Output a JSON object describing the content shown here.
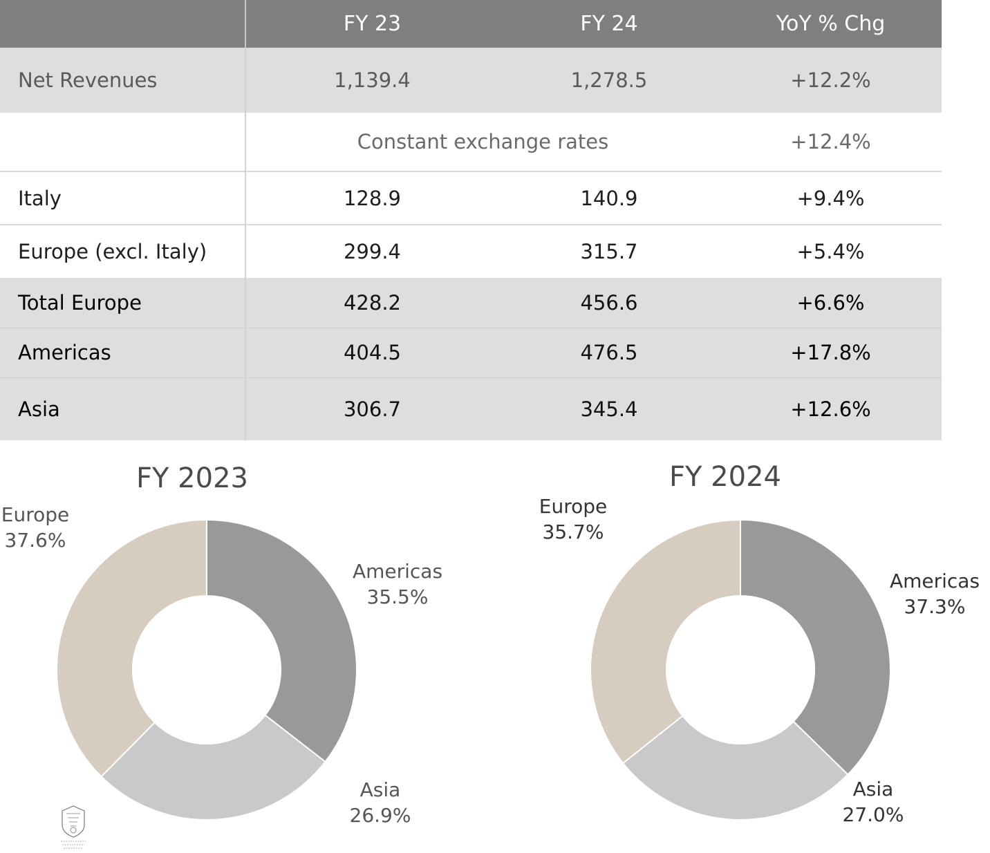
{
  "table": {
    "headers": [
      "",
      "FY 23",
      "FY 24",
      "YoY % Chg"
    ],
    "net_revenues": {
      "label": "Net Revenues",
      "fy23": "1,139.4",
      "fy24": "1,278.5",
      "yoy": "+12.2%"
    },
    "constant_fx": {
      "label": "Constant exchange rates",
      "value": "+12.4%"
    },
    "rows": [
      {
        "label": "Italy",
        "fy23": "128.9",
        "fy24": "140.9",
        "yoy": "+9.4%"
      },
      {
        "label": "Europe (excl. Italy)",
        "fy23": "299.4",
        "fy24": "315.7",
        "yoy": "+5.4%"
      },
      {
        "label": "Total Europe",
        "fy23": "428.2",
        "fy24": "456.6",
        "yoy": "+6.6%"
      },
      {
        "label": "Americas",
        "fy23": "404.5",
        "fy24": "476.5",
        "yoy": "+17.8%"
      },
      {
        "label": "Asia",
        "fy23": "306.7",
        "fy24": "345.4",
        "yoy": "+12.6%"
      }
    ]
  },
  "colors": {
    "americas": "#999999",
    "asia": "#c9c9c9",
    "europe": "#d6ccbf"
  },
  "chart_data": [
    {
      "type": "pie",
      "title": "FY 2023",
      "slices": [
        {
          "name": "Americas",
          "value": 35.5,
          "label": "35.5%"
        },
        {
          "name": "Asia",
          "value": 26.9,
          "label": "26.9%"
        },
        {
          "name": "Europe",
          "value": 37.6,
          "label": "37.6%"
        }
      ]
    },
    {
      "type": "pie",
      "title": "FY 2024",
      "slices": [
        {
          "name": "Americas",
          "value": 37.3,
          "label": "37.3%"
        },
        {
          "name": "Asia",
          "value": 27.0,
          "label": "27.0%"
        },
        {
          "name": "Europe",
          "value": 35.7,
          "label": "35.7%"
        }
      ]
    }
  ]
}
